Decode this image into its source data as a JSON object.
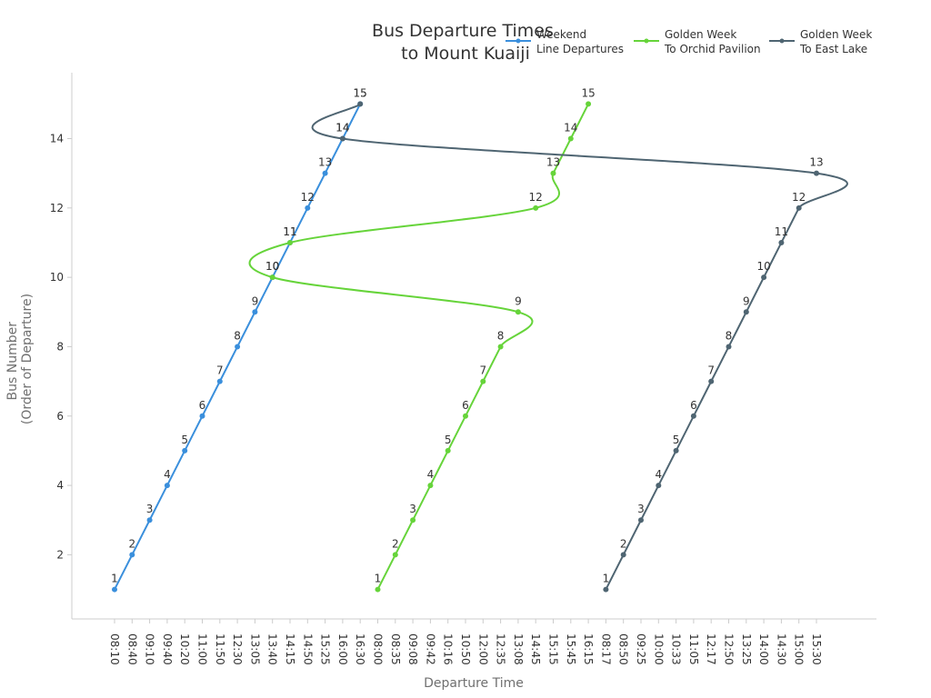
{
  "chart_data": {
    "type": "line",
    "title": "Bus Departure Times\nto Mount Kuaiji",
    "xlabel": "Departure Time",
    "ylabel": "Bus Number\n(Order of Departure)",
    "ylim": [
      0.15,
      15.9
    ],
    "yticks": [
      2,
      4,
      6,
      8,
      10,
      12,
      14
    ],
    "categories": [
      "08:10",
      "08:40",
      "09:10",
      "09:40",
      "10:20",
      "11:00",
      "11:50",
      "12:30",
      "13:05",
      "13:40",
      "14:15",
      "14:50",
      "15:25",
      "16:00",
      "16:30",
      "08:00",
      "08:35",
      "09:08",
      "09:42",
      "10:16",
      "10:50",
      "12:00",
      "12:35",
      "13:08",
      "14:45",
      "15:15",
      "15:45",
      "16:15",
      "08:17",
      "08:50",
      "09:25",
      "10:00",
      "10:33",
      "11:05",
      "12:17",
      "12:50",
      "13:25",
      "14:00",
      "14:30",
      "15:00",
      "15:30"
    ],
    "grid": false,
    "legend_position": "top-right",
    "series": [
      {
        "name": "Weekend\nLine Departures",
        "color": "#3a8fdc",
        "points": [
          {
            "x": "08:10",
            "y": 1
          },
          {
            "x": "08:40",
            "y": 2
          },
          {
            "x": "09:10",
            "y": 3
          },
          {
            "x": "09:40",
            "y": 4
          },
          {
            "x": "10:20",
            "y": 5
          },
          {
            "x": "11:00",
            "y": 6
          },
          {
            "x": "11:50",
            "y": 7
          },
          {
            "x": "12:30",
            "y": 8
          },
          {
            "x": "13:05",
            "y": 9
          },
          {
            "x": "13:40",
            "y": 10
          },
          {
            "x": "14:15",
            "y": 11
          },
          {
            "x": "14:50",
            "y": 12
          },
          {
            "x": "15:25",
            "y": 13
          },
          {
            "x": "16:00",
            "y": 14
          },
          {
            "x": "16:30",
            "y": 15
          }
        ]
      },
      {
        "name": "Golden Week\nTo Orchid Pavilion",
        "color": "#66d43a",
        "points": [
          {
            "x": "08:00",
            "y": 1
          },
          {
            "x": "08:35",
            "y": 2
          },
          {
            "x": "09:08",
            "y": 3
          },
          {
            "x": "09:42",
            "y": 4
          },
          {
            "x": "10:16",
            "y": 5
          },
          {
            "x": "10:50",
            "y": 6
          },
          {
            "x": "12:00",
            "y": 7
          },
          {
            "x": "12:35",
            "y": 8
          },
          {
            "x": "13:08",
            "y": 9
          },
          {
            "x": "13:40",
            "y": 10
          },
          {
            "x": "14:15",
            "y": 11
          },
          {
            "x": "14:45",
            "y": 12
          },
          {
            "x": "15:15",
            "y": 13
          },
          {
            "x": "15:45",
            "y": 14
          },
          {
            "x": "16:15",
            "y": 15
          }
        ]
      },
      {
        "name": "Golden Week\nTo East Lake",
        "color": "#4f6572",
        "points": [
          {
            "x": "08:17",
            "y": 1
          },
          {
            "x": "08:50",
            "y": 2
          },
          {
            "x": "09:25",
            "y": 3
          },
          {
            "x": "10:00",
            "y": 4
          },
          {
            "x": "10:33",
            "y": 5
          },
          {
            "x": "11:05",
            "y": 6
          },
          {
            "x": "12:17",
            "y": 7
          },
          {
            "x": "12:50",
            "y": 8
          },
          {
            "x": "13:25",
            "y": 9
          },
          {
            "x": "14:00",
            "y": 10
          },
          {
            "x": "14:30",
            "y": 11
          },
          {
            "x": "15:00",
            "y": 12
          },
          {
            "x": "15:30",
            "y": 13
          },
          {
            "x": "16:00",
            "y": 14
          },
          {
            "x": "16:30",
            "y": 15
          }
        ]
      }
    ]
  }
}
